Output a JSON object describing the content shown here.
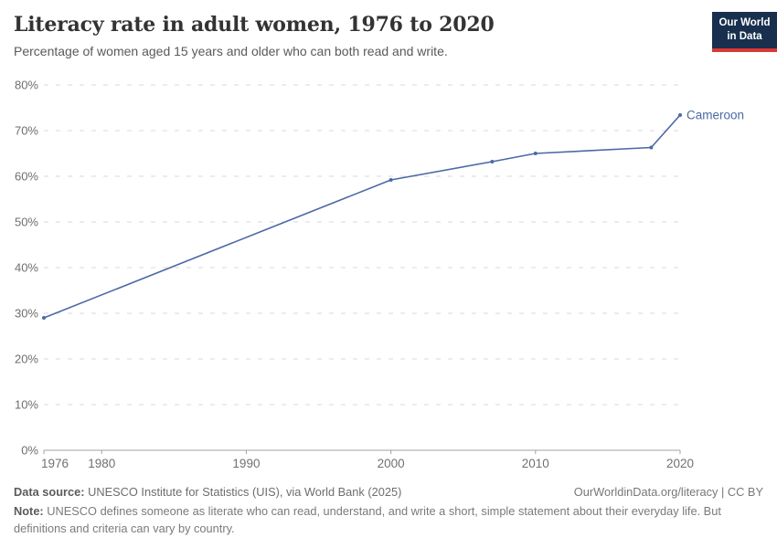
{
  "header": {
    "title": "Literacy rate in adult women, 1976 to 2020",
    "subtitle": "Percentage of women aged 15 years and older who can both read and write.",
    "logo": {
      "line1": "Our World",
      "line2": "in Data"
    }
  },
  "chart_data": {
    "type": "line",
    "title": "Literacy rate in adult women, 1976 to 2020",
    "subtitle": "Percentage of women aged 15 years and older who can both read and write.",
    "xlabel": "",
    "ylabel": "",
    "xlim": [
      1976,
      2020
    ],
    "ylim": [
      0,
      80
    ],
    "x_ticks": [
      1976,
      1980,
      1990,
      2000,
      2010,
      2020
    ],
    "y_ticks": [
      0,
      10,
      20,
      30,
      40,
      50,
      60,
      70,
      80
    ],
    "y_tick_suffix": "%",
    "grid": "horizontal-dashed",
    "legend": "end-of-line-label",
    "series": [
      {
        "name": "Cameroon",
        "color": "#4b69a5",
        "points": [
          [
            1976,
            29
          ],
          [
            2000,
            59.2
          ],
          [
            2007,
            63.2
          ],
          [
            2010,
            65
          ],
          [
            2018,
            66.3
          ],
          [
            2020,
            73.4
          ]
        ]
      }
    ]
  },
  "footer": {
    "datasource_label": "Data source:",
    "datasource_text": " UNESCO Institute for Statistics (UIS), via World Bank (2025)",
    "rights": "OurWorldinData.org/literacy | CC BY",
    "note_label": "Note:",
    "note_text": " UNESCO defines someone as literate who can read, understand, and write a short, simple statement about their everyday life. But definitions and criteria can vary by country."
  },
  "colors": {
    "line": "#4b69a5",
    "logo_bg": "#18304e",
    "logo_stripe": "#d73a34",
    "grid": "#d8d8d8",
    "axis": "#a0a0a0",
    "y_tick_label": "#6e6e6e",
    "x_tick_label": "#707070"
  }
}
